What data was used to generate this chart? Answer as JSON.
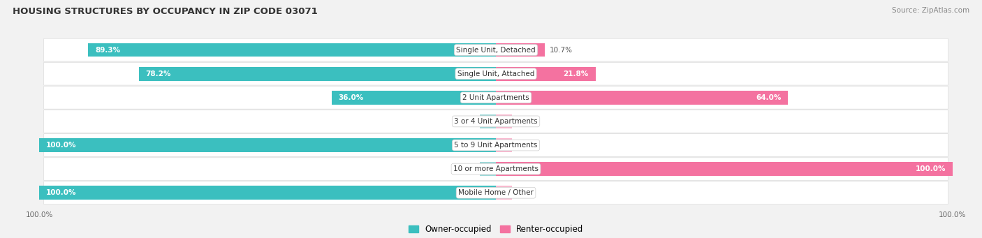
{
  "title": "HOUSING STRUCTURES BY OCCUPANCY IN ZIP CODE 03071",
  "source": "Source: ZipAtlas.com",
  "categories": [
    "Single Unit, Detached",
    "Single Unit, Attached",
    "2 Unit Apartments",
    "3 or 4 Unit Apartments",
    "5 to 9 Unit Apartments",
    "10 or more Apartments",
    "Mobile Home / Other"
  ],
  "owner_pct": [
    89.3,
    78.2,
    36.0,
    0.0,
    100.0,
    0.0,
    100.0
  ],
  "renter_pct": [
    10.7,
    21.8,
    64.0,
    0.0,
    0.0,
    100.0,
    0.0
  ],
  "owner_color": "#3bbfbf",
  "renter_color": "#f472a0",
  "owner_color_light": "#9dd8d8",
  "renter_color_light": "#f9b8cf",
  "background_color": "#f2f2f2",
  "row_bg_color": "#ffffff",
  "label_color_white": "#ffffff",
  "label_color_dark": "#555555",
  "bar_height": 0.58,
  "legend_labels": [
    "Owner-occupied",
    "Renter-occupied"
  ],
  "axis_label_left": "100.0%",
  "axis_label_right": "100.0%"
}
